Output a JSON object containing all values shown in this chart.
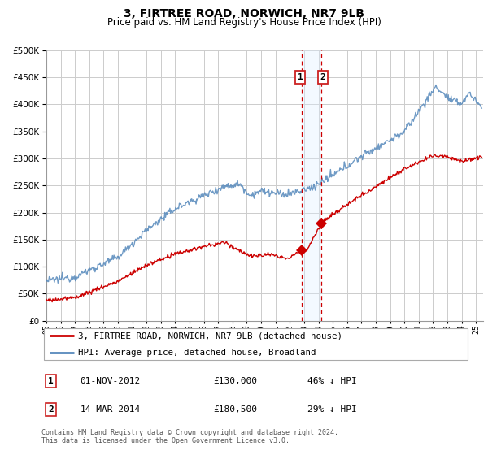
{
  "title": "3, FIRTREE ROAD, NORWICH, NR7 9LB",
  "subtitle": "Price paid vs. HM Land Registry's House Price Index (HPI)",
  "legend_line1": "3, FIRTREE ROAD, NORWICH, NR7 9LB (detached house)",
  "legend_line2": "HPI: Average price, detached house, Broadland",
  "sale1_label": "1",
  "sale1_date": "01-NOV-2012",
  "sale1_price": "£130,000",
  "sale1_pct": "46% ↓ HPI",
  "sale1_year": 2012.83,
  "sale1_value": 130000,
  "sale2_label": "2",
  "sale2_date": "14-MAR-2014",
  "sale2_price": "£180,500",
  "sale2_pct": "29% ↓ HPI",
  "sale2_year": 2014.21,
  "sale2_value": 180500,
  "ylim": [
    0,
    500000
  ],
  "xlim_start": 1995.0,
  "xlim_end": 2025.5,
  "footnote": "Contains HM Land Registry data © Crown copyright and database right 2024.\nThis data is licensed under the Open Government Licence v3.0.",
  "red_color": "#cc0000",
  "blue_color": "#5588bb",
  "shade_color": "#ddeeff",
  "grid_color": "#cccccc",
  "bg_color": "#f8f8f8"
}
